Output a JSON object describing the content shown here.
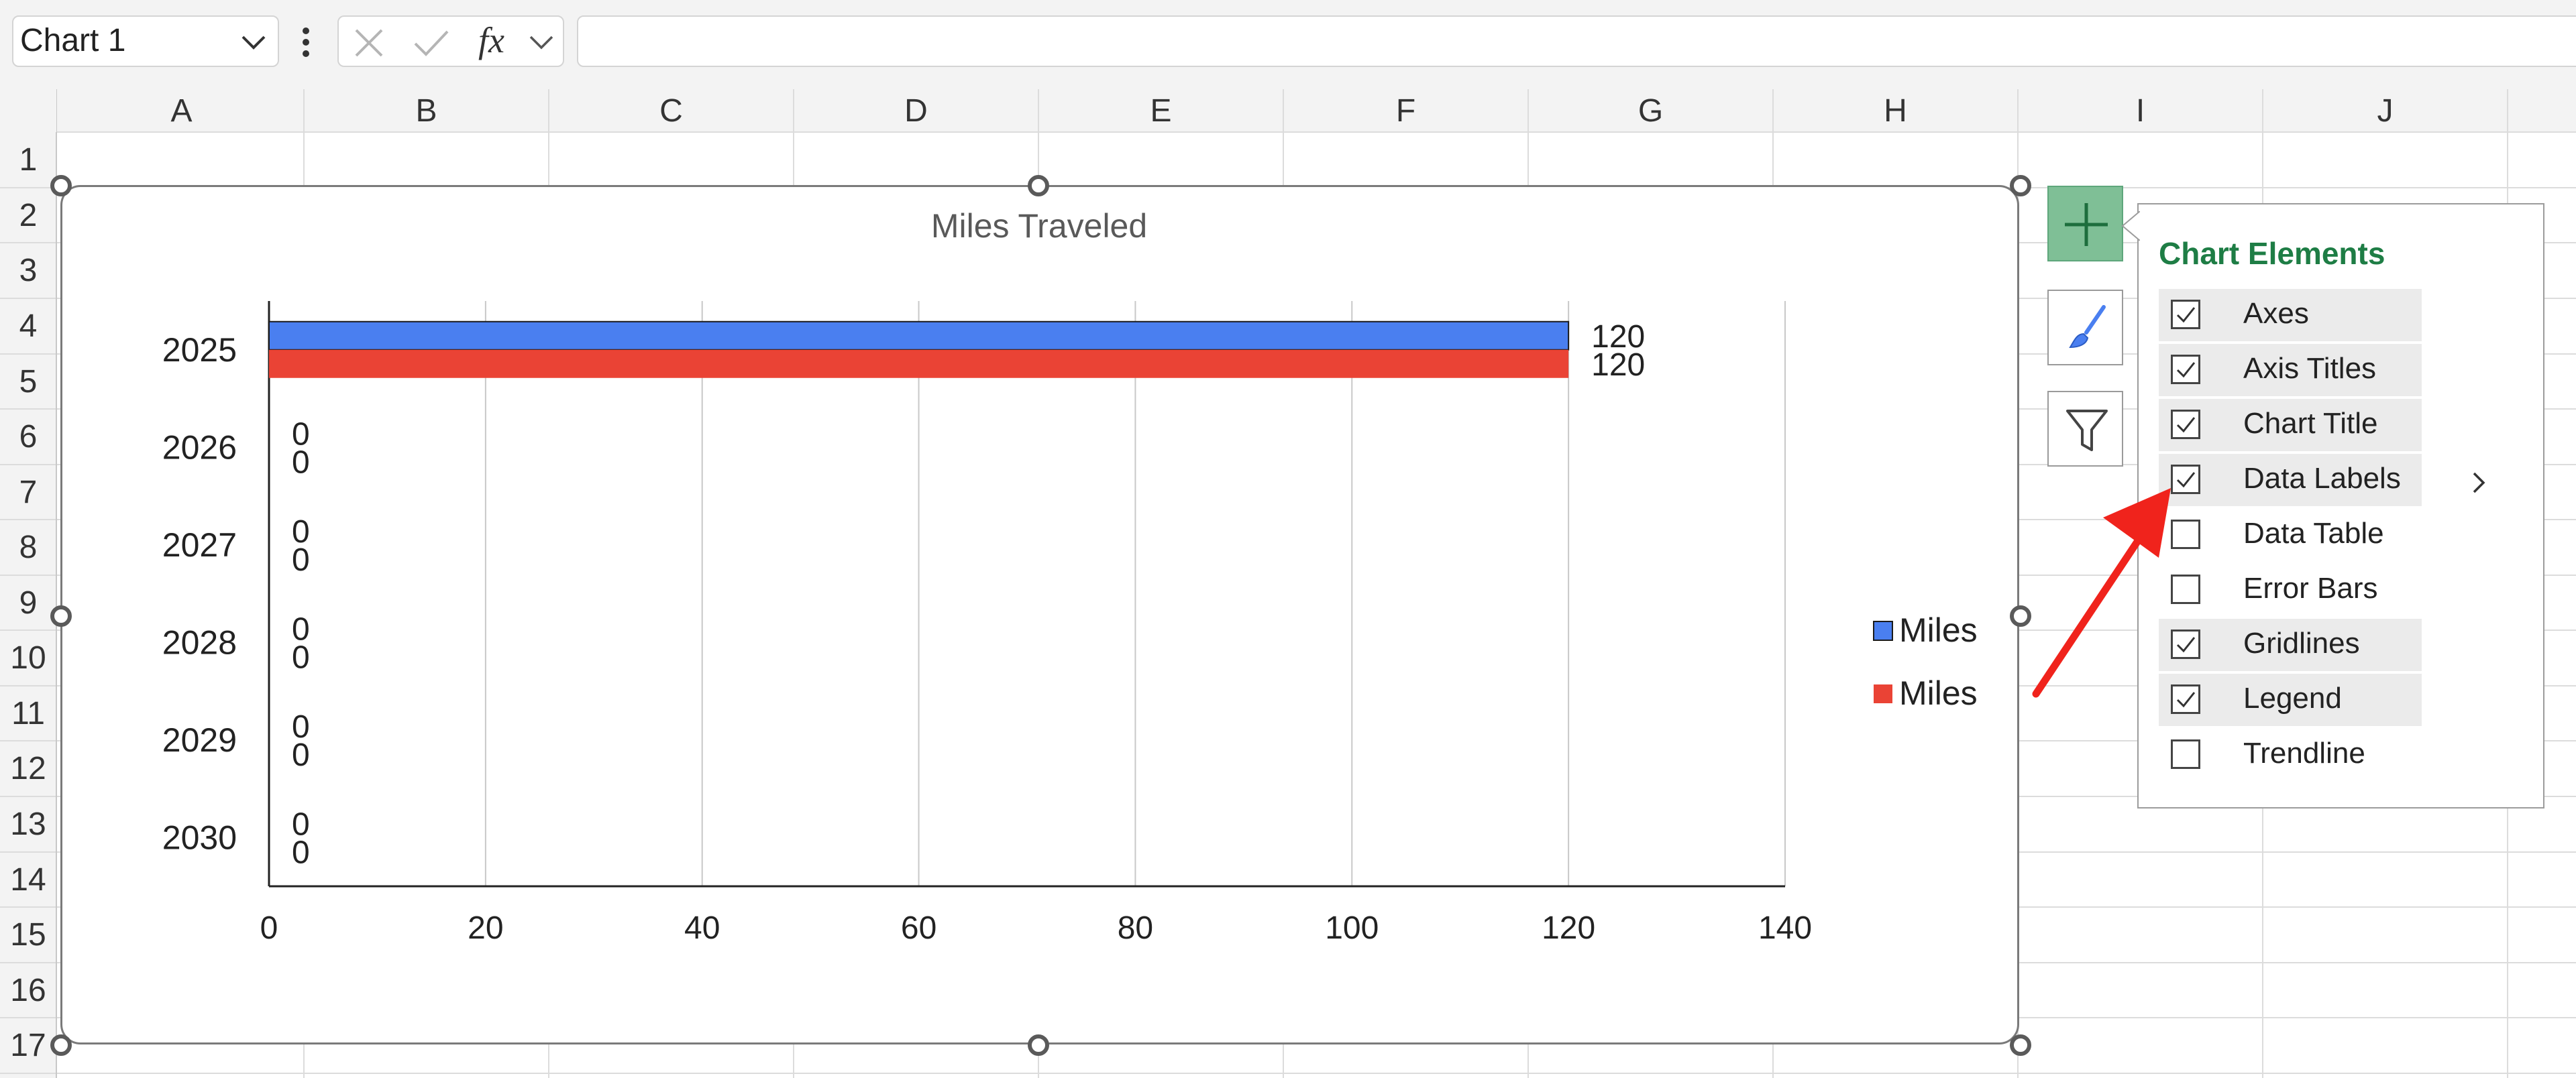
{
  "name_box": {
    "value": "Chart 1"
  },
  "formula_bar": {
    "fx_label": "fx",
    "value": ""
  },
  "columns": [
    "A",
    "B",
    "C",
    "D",
    "E",
    "F",
    "G",
    "H",
    "I",
    "J"
  ],
  "rows": [
    "1",
    "2",
    "3",
    "4",
    "5",
    "6",
    "7",
    "8",
    "9",
    "10",
    "11",
    "12",
    "13",
    "14",
    "15",
    "16",
    "17"
  ],
  "chart_elements_panel": {
    "title": "Chart Elements",
    "items": [
      {
        "label": "Axes",
        "checked": true
      },
      {
        "label": "Axis Titles",
        "checked": true
      },
      {
        "label": "Chart Title",
        "checked": true
      },
      {
        "label": "Data Labels",
        "checked": true
      },
      {
        "label": "Data Table",
        "checked": false
      },
      {
        "label": "Error Bars",
        "checked": false
      },
      {
        "label": "Gridlines",
        "checked": true
      },
      {
        "label": "Legend",
        "checked": true
      },
      {
        "label": "Trendline",
        "checked": false
      }
    ]
  },
  "colors": {
    "series1": "#4a7ff0",
    "series2": "#ea4335",
    "accent": "#1e7d45",
    "annotation": "#f0231c"
  },
  "icons": [
    "chevron-down-icon",
    "more-vertical-icon",
    "cancel-x-icon",
    "confirm-check-icon",
    "fx-icon",
    "plus-icon",
    "paintbrush-icon",
    "funnel-icon",
    "chevron-right-icon"
  ],
  "chart_data": {
    "type": "bar",
    "orientation": "horizontal",
    "title": "Miles Traveled",
    "categories": [
      "2025",
      "2026",
      "2027",
      "2028",
      "2029",
      "2030"
    ],
    "series": [
      {
        "name": "Miles",
        "values": [
          120,
          0,
          0,
          0,
          0,
          0
        ]
      },
      {
        "name": "Miles",
        "values": [
          120,
          0,
          0,
          0,
          0,
          0
        ]
      }
    ],
    "xlim": [
      0,
      140
    ],
    "x_ticks": [
      0,
      20,
      40,
      60,
      80,
      100,
      120,
      140
    ],
    "grid": true,
    "data_labels": true,
    "legend_position": "right"
  }
}
